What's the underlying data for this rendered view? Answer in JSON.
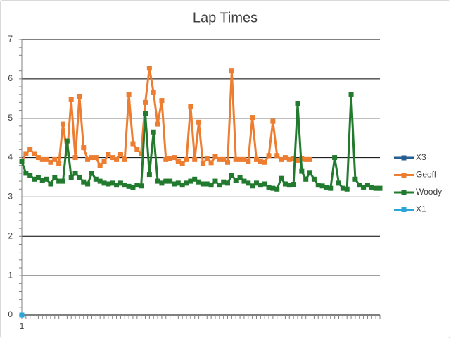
{
  "chart_data": {
    "type": "line",
    "title": "Lap Times",
    "categories": [
      "1",
      null,
      null,
      null,
      null,
      null,
      null,
      null,
      null,
      null,
      null,
      null,
      null,
      null,
      null,
      null,
      null,
      null,
      null,
      null,
      null,
      null,
      null,
      null,
      null,
      null,
      null,
      null,
      null,
      null,
      null,
      null,
      null,
      null,
      null,
      null,
      null,
      null,
      null,
      null,
      null,
      null,
      null,
      null,
      null,
      null,
      null,
      null,
      null,
      null,
      null,
      null,
      null,
      null,
      null,
      null,
      null,
      null,
      null,
      null,
      null,
      null,
      null,
      null,
      null,
      null,
      null,
      null,
      null,
      null,
      null,
      null,
      null,
      null,
      null,
      null,
      null,
      null,
      null,
      null,
      null,
      null,
      null,
      null,
      null,
      null,
      null,
      null
    ],
    "series": [
      {
        "name": "X3",
        "color": "#255e91",
        "values": [
          0,
          null,
          null,
          null,
          null,
          null,
          null,
          null,
          null,
          null,
          null,
          null,
          null,
          null,
          null,
          null,
          null,
          null,
          null,
          null,
          null,
          null,
          null,
          null,
          null,
          null,
          null,
          null,
          null,
          null,
          null,
          null,
          null,
          null,
          null,
          null,
          null,
          null,
          null,
          null,
          null,
          null,
          null,
          null,
          null,
          null,
          null,
          null,
          null,
          null,
          null,
          null,
          null,
          null,
          null,
          null,
          null,
          null,
          null,
          null,
          null,
          null,
          null,
          null,
          null,
          null,
          null,
          null,
          null,
          null,
          null,
          null,
          null,
          null,
          null,
          null,
          null,
          null,
          null,
          null,
          null,
          null,
          null,
          null,
          null,
          null,
          null,
          null
        ]
      },
      {
        "name": "Geoff",
        "color": "#ed7d31",
        "values": [
          3.9,
          4.1,
          4.2,
          4.1,
          4.0,
          3.95,
          3.95,
          3.88,
          3.95,
          3.85,
          4.85,
          4.1,
          5.47,
          4.0,
          5.55,
          4.25,
          3.95,
          4.0,
          4.0,
          3.8,
          3.9,
          4.08,
          4.0,
          3.95,
          4.08,
          3.95,
          5.6,
          4.35,
          4.2,
          4.1,
          5.4,
          6.27,
          5.65,
          4.85,
          5.45,
          3.95,
          3.97,
          4.0,
          3.9,
          3.85,
          3.95,
          5.3,
          3.95,
          4.9,
          3.85,
          3.97,
          3.87,
          4.02,
          3.95,
          3.95,
          3.88,
          6.2,
          3.95,
          3.95,
          3.95,
          3.9,
          5.02,
          3.95,
          3.9,
          3.88,
          4.05,
          4.92,
          4.05,
          3.95,
          4.0,
          3.95,
          3.97,
          3.93,
          3.97,
          3.95,
          3.95,
          null,
          null,
          null,
          null,
          null,
          null,
          null,
          null,
          null,
          null,
          null,
          null,
          null,
          null,
          null,
          null,
          null
        ]
      },
      {
        "name": "Woody",
        "color": "#217a2e",
        "values": [
          3.9,
          3.6,
          3.55,
          3.45,
          3.5,
          3.42,
          3.45,
          3.33,
          3.5,
          3.4,
          3.4,
          4.42,
          3.5,
          3.6,
          3.5,
          3.38,
          3.33,
          3.6,
          3.45,
          3.4,
          3.35,
          3.33,
          3.35,
          3.3,
          3.35,
          3.3,
          3.27,
          3.25,
          3.3,
          3.28,
          5.12,
          3.57,
          4.65,
          3.4,
          3.35,
          3.4,
          3.4,
          3.33,
          3.35,
          3.3,
          3.35,
          3.4,
          3.45,
          3.38,
          3.33,
          3.33,
          3.3,
          3.4,
          3.3,
          3.38,
          3.35,
          3.55,
          3.42,
          3.5,
          3.4,
          3.35,
          3.28,
          3.35,
          3.3,
          3.33,
          3.25,
          3.22,
          3.2,
          3.47,
          3.33,
          3.3,
          3.32,
          5.37,
          3.65,
          3.45,
          3.62,
          3.45,
          3.3,
          3.28,
          3.25,
          3.22,
          4.0,
          3.35,
          3.22,
          3.2,
          5.6,
          3.45,
          3.3,
          3.25,
          3.3,
          3.25,
          3.22,
          3.22
        ]
      },
      {
        "name": "X1",
        "color": "#2aa7d8",
        "values": [
          0,
          null,
          null,
          null,
          null,
          null,
          null,
          null,
          null,
          null,
          null,
          null,
          null,
          null,
          null,
          null,
          null,
          null,
          null,
          null,
          null,
          null,
          null,
          null,
          null,
          null,
          null,
          null,
          null,
          null,
          null,
          null,
          null,
          null,
          null,
          null,
          null,
          null,
          null,
          null,
          null,
          null,
          null,
          null,
          null,
          null,
          null,
          null,
          null,
          null,
          null,
          null,
          null,
          null,
          null,
          null,
          null,
          null,
          null,
          null,
          null,
          null,
          null,
          null,
          null,
          null,
          null,
          null,
          null,
          null,
          null,
          null,
          null,
          null,
          null,
          null,
          null,
          null,
          null,
          null,
          null,
          null,
          null,
          null,
          null,
          null,
          null,
          null
        ]
      }
    ],
    "ylim": [
      0,
      7
    ],
    "yticks": [
      0,
      1,
      2,
      3,
      4,
      5,
      6,
      7
    ],
    "grid": true,
    "legend": "right"
  }
}
